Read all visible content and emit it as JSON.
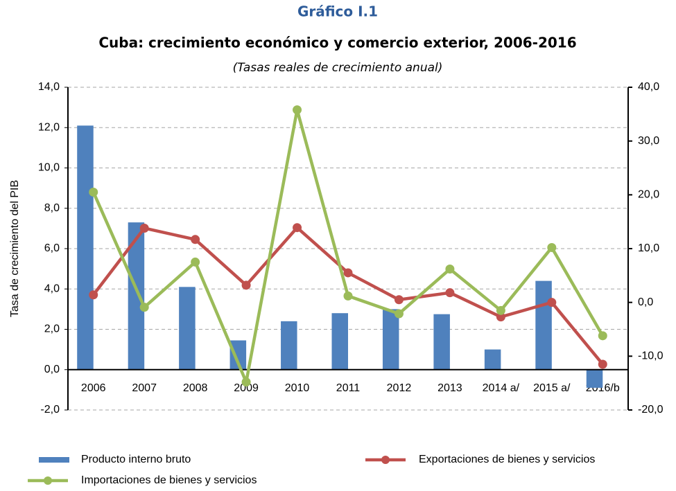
{
  "chart_data": {
    "type": "bar",
    "label": "Gráfico I.1",
    "title": "Cuba: crecimiento económico y comercio exterior, 2006-2016",
    "subtitle": "(Tasas reales de crecimiento anual)",
    "y_label": "Tasa de crecimiento del PIB",
    "categories": [
      "2006",
      "2007",
      "2008",
      "2009",
      "2010",
      "2011",
      "2012",
      "2013",
      "2014 a/",
      "2015 a/",
      "2016/b"
    ],
    "series": [
      {
        "name": "Producto interno bruto",
        "type": "bar",
        "color": "#4f81bd",
        "values": [
          12.1,
          7.3,
          4.1,
          1.45,
          2.4,
          2.8,
          3.0,
          2.75,
          1.0,
          4.4,
          -0.9
        ]
      },
      {
        "name": "Exportaciones de bienes y servicios",
        "type": "line",
        "axis": "y2",
        "color": "#c0504d",
        "values": [
          1.4,
          13.8,
          11.7,
          3.2,
          13.9,
          5.5,
          0.5,
          1.8,
          -2.7,
          0.0,
          -11.5
        ]
      },
      {
        "name": "Importaciones de bienes y servicios",
        "type": "line",
        "axis": "y2",
        "color": "#9bbb59",
        "values": [
          20.5,
          -0.9,
          7.5,
          -14.8,
          35.8,
          1.2,
          -2.1,
          6.2,
          -1.5,
          10.2,
          -6.2
        ]
      }
    ],
    "ylim": [
      -2,
      14
    ],
    "yticks": [
      {
        "value": -2,
        "label": "-2,0"
      },
      {
        "value": 0,
        "label": "0,0"
      },
      {
        "value": 2,
        "label": "2,0"
      },
      {
        "value": 4,
        "label": "4,0"
      },
      {
        "value": 6,
        "label": "6,0"
      },
      {
        "value": 8,
        "label": "8,0"
      },
      {
        "value": 10,
        "label": "10,0"
      },
      {
        "value": 12,
        "label": "12,0"
      },
      {
        "value": 14,
        "label": "14,0"
      }
    ],
    "y2lim": [
      -20,
      40
    ],
    "y2ticks": [
      {
        "value": -20,
        "label": "-20,0"
      },
      {
        "value": -10,
        "label": "-10,0"
      },
      {
        "value": 0,
        "label": "0,0"
      },
      {
        "value": 10,
        "label": "10,0"
      },
      {
        "value": 20,
        "label": "20,0"
      },
      {
        "value": 30,
        "label": "30,0"
      },
      {
        "value": 40,
        "label": "40,0"
      }
    ],
    "grid": true,
    "legend": "bottom"
  }
}
